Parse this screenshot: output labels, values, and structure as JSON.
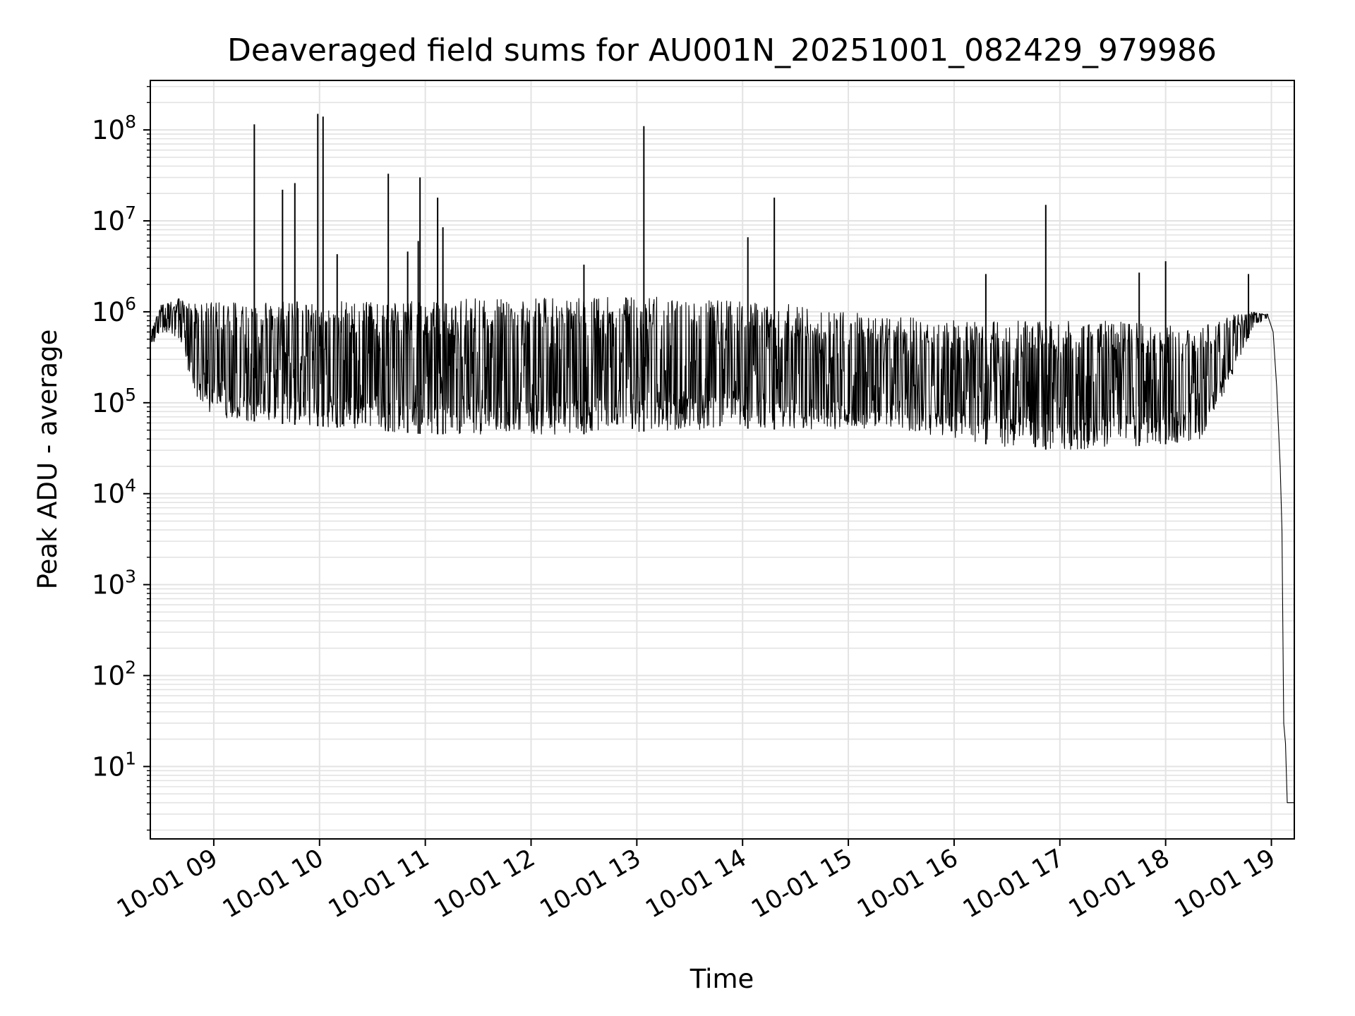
{
  "chart_data": {
    "type": "line",
    "title": "Deaveraged field sums for AU001N_20251001_082429_979986",
    "xlabel": "Time",
    "ylabel": "Peak ADU - average",
    "yscale": "log",
    "ylim": [
      1.6,
      350000000
    ],
    "xlim": [
      "2025-10-01 08:24",
      "2025-10-01 19:13"
    ],
    "grid": true,
    "x_ticks": [
      {
        "t": "2025-10-01 09:00",
        "label": "10-01 09"
      },
      {
        "t": "2025-10-01 10:00",
        "label": "10-01 10"
      },
      {
        "t": "2025-10-01 11:00",
        "label": "10-01 11"
      },
      {
        "t": "2025-10-01 12:00",
        "label": "10-01 12"
      },
      {
        "t": "2025-10-01 13:00",
        "label": "10-01 13"
      },
      {
        "t": "2025-10-01 14:00",
        "label": "10-01 14"
      },
      {
        "t": "2025-10-01 15:00",
        "label": "10-01 15"
      },
      {
        "t": "2025-10-01 16:00",
        "label": "10-01 16"
      },
      {
        "t": "2025-10-01 17:00",
        "label": "10-01 17"
      },
      {
        "t": "2025-10-01 18:00",
        "label": "10-01 18"
      },
      {
        "t": "2025-10-01 19:00",
        "label": "10-01 19"
      }
    ],
    "y_ticks": [
      {
        "value": 10,
        "base": "10",
        "exp": "1"
      },
      {
        "value": 100,
        "base": "10",
        "exp": "2"
      },
      {
        "value": 1000,
        "base": "10",
        "exp": "3"
      },
      {
        "value": 10000,
        "base": "10",
        "exp": "4"
      },
      {
        "value": 100000,
        "base": "10",
        "exp": "5"
      },
      {
        "value": 1000000,
        "base": "10",
        "exp": "6"
      },
      {
        "value": 10000000,
        "base": "10",
        "exp": "7"
      },
      {
        "value": 100000000,
        "base": "10",
        "exp": "8"
      }
    ],
    "series": [
      {
        "color": "#000000",
        "band": {
          "x": [
            "2025-10-01 08:24",
            "2025-10-01 08:30",
            "2025-10-01 08:40",
            "2025-10-01 08:50",
            "2025-10-01 09:00",
            "2025-10-01 09:30",
            "2025-10-01 10:00",
            "2025-10-01 10:30",
            "2025-10-01 11:00",
            "2025-10-01 11:30",
            "2025-10-01 12:00",
            "2025-10-01 12:30",
            "2025-10-01 13:00",
            "2025-10-01 13:30",
            "2025-10-01 14:00",
            "2025-10-01 14:30",
            "2025-10-01 15:00",
            "2025-10-01 15:30",
            "2025-10-01 16:00",
            "2025-10-01 16:30",
            "2025-10-01 17:00",
            "2025-10-01 17:30",
            "2025-10-01 18:00",
            "2025-10-01 18:20",
            "2025-10-01 18:35",
            "2025-10-01 18:50",
            "2025-10-01 18:58"
          ],
          "low": [
            400000,
            600000,
            500000,
            120000,
            70000,
            60000,
            55000,
            50000,
            45000,
            45000,
            45000,
            45000,
            48000,
            50000,
            52000,
            50000,
            50000,
            50000,
            40000,
            32000,
            30000,
            32000,
            35000,
            40000,
            150000,
            700000,
            850000
          ],
          "high": [
            600000,
            1200000,
            1400000,
            1300000,
            1300000,
            1300000,
            1300000,
            1300000,
            1300000,
            1400000,
            1400000,
            1450000,
            1500000,
            1400000,
            1300000,
            1200000,
            1000000,
            900000,
            800000,
            800000,
            800000,
            800000,
            700000,
            700000,
            900000,
            1000000,
            950000
          ]
        },
        "tail": {
          "x": [
            "2025-10-01 18:58",
            "2025-10-01 19:01",
            "2025-10-01 19:03",
            "2025-10-01 19:05",
            "2025-10-01 19:06",
            "2025-10-01 19:07",
            "2025-10-01 19:08",
            "2025-10-01 19:09",
            "2025-10-01 19:13"
          ],
          "y": [
            900000,
            600000,
            150000,
            20000,
            4000,
            30,
            18,
            4,
            4
          ]
        },
        "spikes": [
          {
            "t": "2025-10-01 09:23",
            "y": 115000000
          },
          {
            "t": "2025-10-01 09:39",
            "y": 22000000
          },
          {
            "t": "2025-10-01 09:46",
            "y": 26000000
          },
          {
            "t": "2025-10-01 09:59",
            "y": 150000000
          },
          {
            "t": "2025-10-01 10:02",
            "y": 140000000
          },
          {
            "t": "2025-10-01 10:10",
            "y": 4300000
          },
          {
            "t": "2025-10-01 10:39",
            "y": 33000000
          },
          {
            "t": "2025-10-01 10:50",
            "y": 4600000
          },
          {
            "t": "2025-10-01 10:56",
            "y": 6000000
          },
          {
            "t": "2025-10-01 10:57",
            "y": 30000000
          },
          {
            "t": "2025-10-01 11:07",
            "y": 18000000
          },
          {
            "t": "2025-10-01 11:10",
            "y": 8500000
          },
          {
            "t": "2025-10-01 12:30",
            "y": 3300000
          },
          {
            "t": "2025-10-01 13:04",
            "y": 110000000
          },
          {
            "t": "2025-10-01 14:03",
            "y": 6600000
          },
          {
            "t": "2025-10-01 14:18",
            "y": 18000000
          },
          {
            "t": "2025-10-01 16:18",
            "y": 2600000
          },
          {
            "t": "2025-10-01 16:52",
            "y": 15000000
          },
          {
            "t": "2025-10-01 17:45",
            "y": 2700000
          },
          {
            "t": "2025-10-01 18:00",
            "y": 3600000
          },
          {
            "t": "2025-10-01 18:47",
            "y": 2600000
          }
        ]
      }
    ]
  }
}
